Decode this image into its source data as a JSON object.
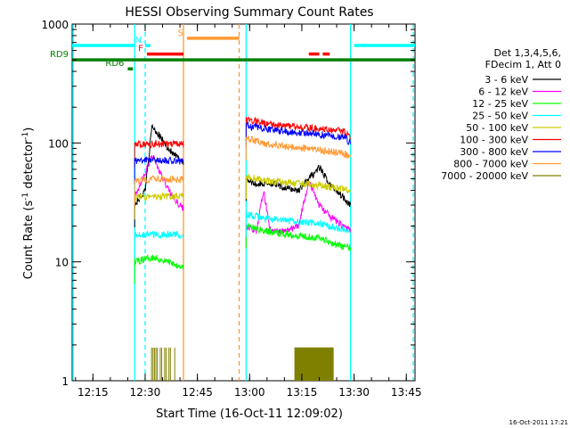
{
  "chart_data": {
    "type": "line",
    "title": "HESSI Observing Summary Count Rates",
    "xlabel": "Start Time (16-Oct-11 12:09:02)",
    "ylabel_main": "Count Rate (s",
    "ylabel_sup1": "-1",
    "ylabel_mid": " detector",
    "ylabel_sup2": "-1",
    "ylabel_end": ")",
    "yscale": "log",
    "ylim": [
      1,
      1000
    ],
    "xlim": [
      "12:09:02",
      "13:47:30"
    ],
    "x_ticks": [
      "12:15",
      "12:30",
      "12:45",
      "13:00",
      "13:15",
      "13:30",
      "13:45"
    ],
    "y_ticks": [
      "1",
      "10",
      "100",
      "1000"
    ],
    "legend": {
      "header1": "Det 1,3,4,5,6,",
      "header2": "FDecim 1, Att 0",
      "position": "right"
    },
    "series": [
      {
        "name": "3 - 6 keV",
        "color": "#000000",
        "segments": [
          {
            "points": [
              [
                "12:27:00",
                30
              ],
              [
                "12:30:00",
                40
              ],
              [
                "12:32:00",
                140
              ],
              [
                "12:35:00",
                105
              ],
              [
                "12:38:00",
                80
              ],
              [
                "12:41:00",
                70
              ]
            ]
          },
          {
            "points": [
              [
                "12:59:00",
                50
              ],
              [
                "13:02:00",
                45
              ],
              [
                "13:06:00",
                46
              ],
              [
                "13:10:00",
                42
              ],
              [
                "13:14:00",
                40
              ],
              [
                "13:17:00",
                50
              ],
              [
                "13:20:00",
                62
              ],
              [
                "13:23:00",
                45
              ],
              [
                "13:27:00",
                35
              ],
              [
                "13:29:00",
                30
              ]
            ]
          }
        ]
      },
      {
        "name": "6 - 12 keV",
        "color": "#ff00ff",
        "segments": [
          {
            "points": [
              [
                "12:27:00",
                35
              ],
              [
                "12:30:00",
                55
              ],
              [
                "12:32:00",
                80
              ],
              [
                "12:35:00",
                50
              ],
              [
                "12:38:00",
                35
              ],
              [
                "12:41:00",
                28
              ]
            ]
          },
          {
            "points": [
              [
                "12:59:00",
                20
              ],
              [
                "13:02:00",
                18
              ],
              [
                "13:04:00",
                40
              ],
              [
                "13:06:00",
                18
              ],
              [
                "13:10:00",
                18
              ],
              [
                "13:14:00",
                20
              ],
              [
                "13:17:00",
                48
              ],
              [
                "13:20:00",
                30
              ],
              [
                "13:23:00",
                24
              ],
              [
                "13:27:00",
                20
              ],
              [
                "13:29:00",
                18
              ]
            ]
          }
        ]
      },
      {
        "name": "12 - 25 keV",
        "color": "#00ff00",
        "segments": [
          {
            "points": [
              [
                "12:27:00",
                10
              ],
              [
                "12:32:00",
                11
              ],
              [
                "12:37:00",
                10
              ],
              [
                "12:41:00",
                9
              ]
            ]
          },
          {
            "points": [
              [
                "12:59:00",
                20
              ],
              [
                "13:05:00",
                18
              ],
              [
                "13:12:00",
                17
              ],
              [
                "13:20:00",
                16
              ],
              [
                "13:25:00",
                14
              ],
              [
                "13:29:00",
                13
              ]
            ]
          }
        ]
      },
      {
        "name": "25 - 50 keV",
        "color": "#00ffff",
        "segments": [
          {
            "points": [
              [
                "12:27:00",
                17
              ],
              [
                "12:33:00",
                17
              ],
              [
                "12:41:00",
                17
              ]
            ]
          },
          {
            "points": [
              [
                "12:59:00",
                25
              ],
              [
                "13:05:00",
                23
              ],
              [
                "13:12:00",
                22
              ],
              [
                "13:20:00",
                21
              ],
              [
                "13:29:00",
                18
              ]
            ]
          }
        ]
      },
      {
        "name": "50 - 100 keV",
        "color": "#cccc00",
        "segments": [
          {
            "points": [
              [
                "12:27:00",
                35
              ],
              [
                "12:33:00",
                35
              ],
              [
                "12:41:00",
                36
              ]
            ]
          },
          {
            "points": [
              [
                "12:59:00",
                52
              ],
              [
                "13:05:00",
                48
              ],
              [
                "13:12:00",
                46
              ],
              [
                "13:20:00",
                44
              ],
              [
                "13:29:00",
                40
              ]
            ]
          }
        ]
      },
      {
        "name": "100 - 300 keV",
        "color": "#ff0000",
        "segments": [
          {
            "points": [
              [
                "12:27:00",
                97
              ],
              [
                "12:33:00",
                98
              ],
              [
                "12:41:00",
                97
              ]
            ]
          },
          {
            "points": [
              [
                "12:59:00",
                160
              ],
              [
                "13:05:00",
                145
              ],
              [
                "13:12:00",
                138
              ],
              [
                "13:20:00",
                132
              ],
              [
                "13:27:00",
                125
              ],
              [
                "13:29:00",
                110
              ]
            ]
          }
        ]
      },
      {
        "name": "300 - 800 keV",
        "color": "#0000ff",
        "segments": [
          {
            "points": [
              [
                "12:27:00",
                70
              ],
              [
                "12:33:00",
                72
              ],
              [
                "12:41:00",
                70
              ]
            ]
          },
          {
            "points": [
              [
                "12:59:00",
                140
              ],
              [
                "13:05:00",
                130
              ],
              [
                "13:12:00",
                124
              ],
              [
                "13:20:00",
                118
              ],
              [
                "13:27:00",
                112
              ],
              [
                "13:29:00",
                100
              ]
            ]
          }
        ]
      },
      {
        "name": "800 - 7000 keV",
        "color": "#ff9933",
        "segments": [
          {
            "points": [
              [
                "12:27:00",
                48
              ],
              [
                "12:33:00",
                50
              ],
              [
                "12:41:00",
                49
              ]
            ]
          },
          {
            "points": [
              [
                "12:59:00",
                110
              ],
              [
                "13:05:00",
                98
              ],
              [
                "13:12:00",
                92
              ],
              [
                "13:20:00",
                87
              ],
              [
                "13:27:00",
                82
              ],
              [
                "13:29:00",
                75
              ]
            ]
          }
        ]
      },
      {
        "name": "7000 - 20000 keV",
        "color": "#808000",
        "segments": [
          {
            "points": [
              [
                "12:31:00",
                1.9
              ],
              [
                "12:33:00",
                1.9
              ],
              [
                "12:35:00",
                1.9
              ],
              [
                "12:37:00",
                1.9
              ],
              [
                "12:39:00",
                1.9
              ]
            ]
          },
          {
            "points": [
              [
                "13:13:00",
                1.9
              ],
              [
                "13:16:00",
                1.9
              ],
              [
                "13:20:00",
                1.9
              ],
              [
                "13:24:00",
                1.9
              ]
            ]
          }
        ]
      }
    ],
    "flag_bars": [
      {
        "label": "",
        "color": "#00ffff",
        "start": "12:09:02",
        "end": "12:27:00",
        "level": 660
      },
      {
        "label": "N",
        "color": "#00ffff",
        "start": "12:30:00",
        "end": "12:31:30",
        "level": 660
      },
      {
        "label": "",
        "color": "#00ffff",
        "start": "13:30:00",
        "end": "13:47:30",
        "level": 660
      },
      {
        "label": "F",
        "color": "#ff0000",
        "start": "12:30:30",
        "end": "12:41:00",
        "level": 560
      },
      {
        "label": "",
        "color": "#ff0000",
        "start": "13:17:00",
        "end": "13:20:00",
        "level": 560
      },
      {
        "label": "",
        "color": "#ff0000",
        "start": "13:21:00",
        "end": "13:23:00",
        "level": 560
      },
      {
        "label": "S",
        "color": "#ff9933",
        "start": "12:42:00",
        "end": "12:57:00",
        "level": 760
      },
      {
        "label": "RD9",
        "color": "#008000",
        "start": "12:09:02",
        "end": "13:47:30",
        "level": 500
      },
      {
        "label": "RD6",
        "color": "#008000",
        "start": "12:25:00",
        "end": "12:26:30",
        "level": 420
      }
    ],
    "vertical_lines": [
      {
        "time": "12:27:00",
        "color": "#00ffff",
        "style": "solid"
      },
      {
        "time": "12:30:00",
        "color": "#00ffff",
        "style": "dashed"
      },
      {
        "time": "12:41:00",
        "color": "#ff9933",
        "style": "solid"
      },
      {
        "time": "12:57:00",
        "color": "#ff9933",
        "style": "dashed"
      },
      {
        "time": "12:59:00",
        "color": "#00ffff",
        "style": "solid"
      },
      {
        "time": "13:29:00",
        "color": "#00ffff",
        "style": "solid"
      },
      {
        "time": "13:47:00",
        "color": "#00ffff",
        "style": "dashed"
      }
    ],
    "left_edge_line": {
      "color": "#00ffff"
    },
    "timestamp": "16-Oct-2011 17:21"
  }
}
